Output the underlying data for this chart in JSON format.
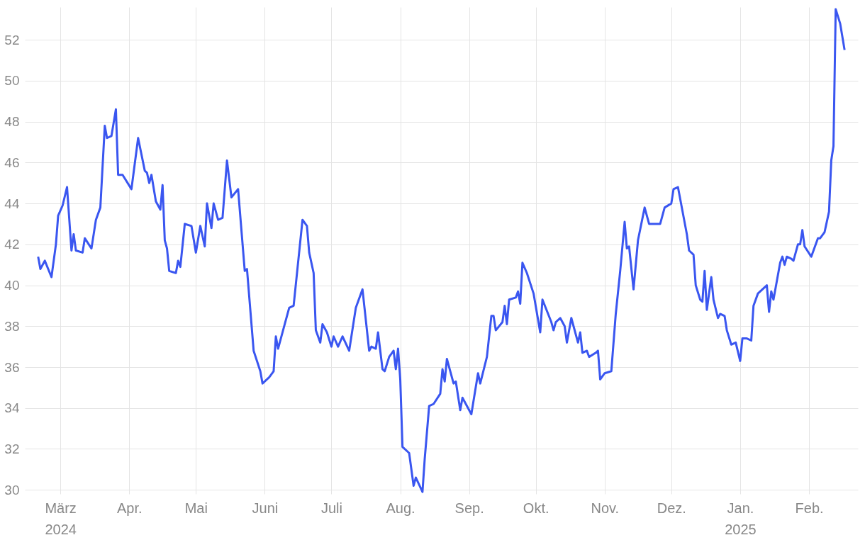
{
  "chart_data": {
    "type": "line",
    "grid": true,
    "marker": "none",
    "line_style": "solid",
    "xlim": [
      "2024-02-14",
      "2025-02-23"
    ],
    "ylim": [
      29.8,
      53.6
    ],
    "yticks": [
      30,
      32,
      34,
      36,
      38,
      40,
      42,
      44,
      46,
      48,
      50,
      52
    ],
    "xticks": [
      {
        "value": "2024-03-01",
        "label": "März 2024"
      },
      {
        "value": "2024-04-01",
        "label": "Apr."
      },
      {
        "value": "2024-05-01",
        "label": "Mai"
      },
      {
        "value": "2024-06-01",
        "label": "Juni"
      },
      {
        "value": "2024-07-01",
        "label": "Juli"
      },
      {
        "value": "2024-08-01",
        "label": "Aug."
      },
      {
        "value": "2024-09-01",
        "label": "Sep."
      },
      {
        "value": "2024-10-01",
        "label": "Okt."
      },
      {
        "value": "2024-11-01",
        "label": "Nov."
      },
      {
        "value": "2024-12-01",
        "label": "Dez."
      },
      {
        "value": "2025-01-01",
        "label": "Jan. 2025"
      },
      {
        "value": "2025-02-01",
        "label": "Feb."
      }
    ],
    "series": [
      {
        "color": "#3a56f0",
        "x": [
          "2024-02-20",
          "2024-02-21",
          "2024-02-23",
          "2024-02-26",
          "2024-02-28",
          "2024-02-29",
          "2024-03-02",
          "2024-03-04",
          "2024-03-06",
          "2024-03-07",
          "2024-03-08",
          "2024-03-11",
          "2024-03-12",
          "2024-03-15",
          "2024-03-17",
          "2024-03-19",
          "2024-03-21",
          "2024-03-22",
          "2024-03-24",
          "2024-03-26",
          "2024-03-27",
          "2024-03-29",
          "2024-04-02",
          "2024-04-05",
          "2024-04-08",
          "2024-04-09",
          "2024-04-10",
          "2024-04-11",
          "2024-04-13",
          "2024-04-15",
          "2024-04-16",
          "2024-04-17",
          "2024-04-18",
          "2024-04-19",
          "2024-04-22",
          "2024-04-23",
          "2024-04-24",
          "2024-04-26",
          "2024-04-29",
          "2024-05-01",
          "2024-05-03",
          "2024-05-05",
          "2024-05-06",
          "2024-05-08",
          "2024-05-09",
          "2024-05-11",
          "2024-05-13",
          "2024-05-15",
          "2024-05-17",
          "2024-05-20",
          "2024-05-23",
          "2024-05-24",
          "2024-05-27",
          "2024-05-30",
          "2024-05-31",
          "2024-06-03",
          "2024-06-05",
          "2024-06-06",
          "2024-06-07",
          "2024-06-10",
          "2024-06-12",
          "2024-06-14",
          "2024-06-18",
          "2024-06-20",
          "2024-06-21",
          "2024-06-23",
          "2024-06-24",
          "2024-06-26",
          "2024-06-27",
          "2024-06-29",
          "2024-07-01",
          "2024-07-02",
          "2024-07-04",
          "2024-07-06",
          "2024-07-09",
          "2024-07-12",
          "2024-07-15",
          "2024-07-18",
          "2024-07-19",
          "2024-07-21",
          "2024-07-22",
          "2024-07-24",
          "2024-07-25",
          "2024-07-27",
          "2024-07-29",
          "2024-07-30",
          "2024-07-31",
          "2024-08-01",
          "2024-08-02",
          "2024-08-05",
          "2024-08-07",
          "2024-08-08",
          "2024-08-11",
          "2024-08-12",
          "2024-08-14",
          "2024-08-16",
          "2024-08-19",
          "2024-08-20",
          "2024-08-21",
          "2024-08-22",
          "2024-08-25",
          "2024-08-26",
          "2024-08-28",
          "2024-08-29",
          "2024-09-02",
          "2024-09-05",
          "2024-09-06",
          "2024-09-09",
          "2024-09-11",
          "2024-09-12",
          "2024-09-13",
          "2024-09-16",
          "2024-09-17",
          "2024-09-18",
          "2024-09-19",
          "2024-09-22",
          "2024-09-23",
          "2024-09-24",
          "2024-09-25",
          "2024-09-27",
          "2024-09-30",
          "2024-10-03",
          "2024-10-04",
          "2024-10-08",
          "2024-10-09",
          "2024-10-10",
          "2024-10-12",
          "2024-10-14",
          "2024-10-15",
          "2024-10-17",
          "2024-10-20",
          "2024-10-21",
          "2024-10-22",
          "2024-10-24",
          "2024-10-25",
          "2024-10-28",
          "2024-10-29",
          "2024-10-30",
          "2024-11-01",
          "2024-11-04",
          "2024-11-06",
          "2024-11-08",
          "2024-11-10",
          "2024-11-11",
          "2024-11-12",
          "2024-11-14",
          "2024-11-16",
          "2024-11-19",
          "2024-11-21",
          "2024-11-24",
          "2024-11-26",
          "2024-11-28",
          "2024-12-01",
          "2024-12-02",
          "2024-12-04",
          "2024-12-08",
          "2024-12-09",
          "2024-12-11",
          "2024-12-12",
          "2024-12-14",
          "2024-12-15",
          "2024-12-16",
          "2024-12-17",
          "2024-12-19",
          "2024-12-20",
          "2024-12-22",
          "2024-12-23",
          "2024-12-25",
          "2024-12-26",
          "2024-12-28",
          "2024-12-30",
          "2025-01-01",
          "2025-01-02",
          "2025-01-04",
          "2025-01-06",
          "2025-01-07",
          "2025-01-09",
          "2025-01-11",
          "2025-01-13",
          "2025-01-14",
          "2025-01-15",
          "2025-01-16",
          "2025-01-19",
          "2025-01-20",
          "2025-01-21",
          "2025-01-22",
          "2025-01-24",
          "2025-01-25",
          "2025-01-27",
          "2025-01-28",
          "2025-01-29",
          "2025-01-30",
          "2025-02-02",
          "2025-02-05",
          "2025-02-06",
          "2025-02-08",
          "2025-02-10",
          "2025-02-11",
          "2025-02-12",
          "2025-02-13",
          "2025-02-15",
          "2025-02-17"
        ],
        "values": [
          41.4,
          40.8,
          41.2,
          40.4,
          42.0,
          43.4,
          43.9,
          44.8,
          41.7,
          42.5,
          41.7,
          41.6,
          42.3,
          41.8,
          43.2,
          43.8,
          47.8,
          47.2,
          47.3,
          48.6,
          45.4,
          45.4,
          44.7,
          47.2,
          45.6,
          45.5,
          45.0,
          45.4,
          44.1,
          43.7,
          44.9,
          42.2,
          41.8,
          40.7,
          40.6,
          41.2,
          40.9,
          43.0,
          42.9,
          41.6,
          42.9,
          41.9,
          44.0,
          42.8,
          44.0,
          43.2,
          43.3,
          46.1,
          44.3,
          44.7,
          40.7,
          40.8,
          36.8,
          35.8,
          35.2,
          35.5,
          35.8,
          37.5,
          36.9,
          38.1,
          38.9,
          39.0,
          43.2,
          42.9,
          41.6,
          40.6,
          37.8,
          37.2,
          38.1,
          37.7,
          37.0,
          37.5,
          37.0,
          37.5,
          36.8,
          38.9,
          39.8,
          36.8,
          37.0,
          36.9,
          37.7,
          35.9,
          35.8,
          36.5,
          36.8,
          35.9,
          36.9,
          35.4,
          32.1,
          31.8,
          30.2,
          30.6,
          29.9,
          31.5,
          34.1,
          34.2,
          34.7,
          35.9,
          35.3,
          36.4,
          35.2,
          35.3,
          33.9,
          34.5,
          33.7,
          35.7,
          35.2,
          36.5,
          38.5,
          38.5,
          37.8,
          38.2,
          39.0,
          38.1,
          39.3,
          39.4,
          39.7,
          39.1,
          41.1,
          40.6,
          39.6,
          37.7,
          39.3,
          38.2,
          37.8,
          38.2,
          38.4,
          38.0,
          37.2,
          38.4,
          37.2,
          37.7,
          36.7,
          36.8,
          36.5,
          36.7,
          36.8,
          35.4,
          35.7,
          35.8,
          38.6,
          40.7,
          43.1,
          41.8,
          41.9,
          39.8,
          42.2,
          43.8,
          43.0,
          43.0,
          43.0,
          43.8,
          44.0,
          44.7,
          44.8,
          42.5,
          41.7,
          41.5,
          40.0,
          39.3,
          39.2,
          40.7,
          38.8,
          40.4,
          39.3,
          38.4,
          38.6,
          38.5,
          37.8,
          37.1,
          37.2,
          36.3,
          37.4,
          37.4,
          37.3,
          39.0,
          39.6,
          39.8,
          40.0,
          38.7,
          39.7,
          39.3,
          41.1,
          41.4,
          41.0,
          41.4,
          41.3,
          41.2,
          42.0,
          42.0,
          42.7,
          41.9,
          41.4,
          42.3,
          42.3,
          42.6,
          43.6,
          46.1,
          46.8,
          53.5,
          52.8,
          51.5
        ]
      }
    ]
  }
}
